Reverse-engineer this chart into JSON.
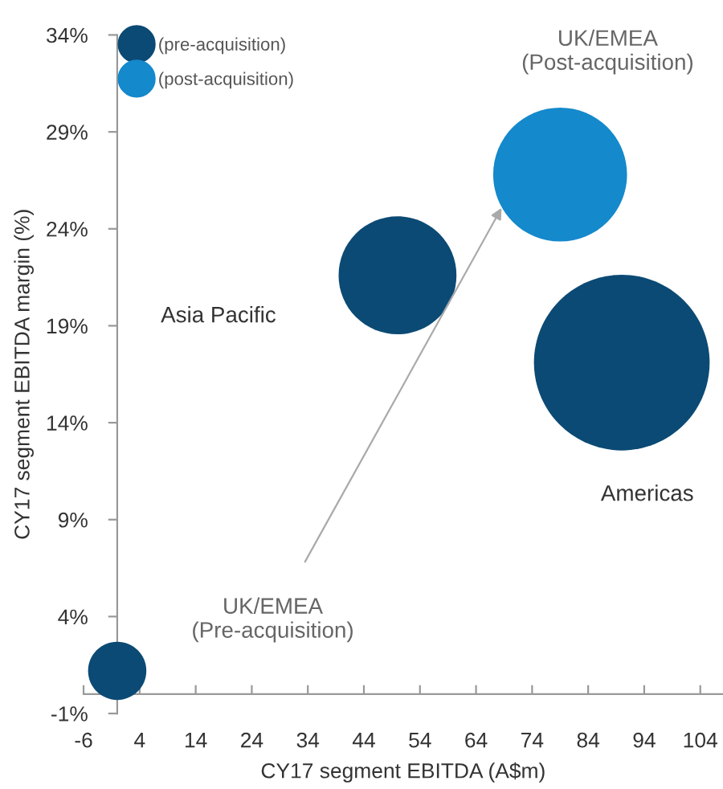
{
  "chart_data": {
    "type": "bubble",
    "xlabel": "CY17 segment EBITDA (A$m)",
    "ylabel": "CY17 segment EBITDA margin (%)",
    "xlim": [
      -6,
      108
    ],
    "xticks": [
      -6,
      4,
      14,
      24,
      34,
      44,
      54,
      64,
      74,
      84,
      94,
      104
    ],
    "ylim": [
      -1,
      34
    ],
    "yticks": [
      {
        "value": -1,
        "label": "-1%"
      },
      {
        "value": 4,
        "label": "4%"
      },
      {
        "value": 9,
        "label": "9%"
      },
      {
        "value": 14,
        "label": "14%"
      },
      {
        "value": 19,
        "label": "19%"
      },
      {
        "value": 24,
        "label": "24%"
      },
      {
        "value": 29,
        "label": "29%"
      },
      {
        "value": 34,
        "label": "34%"
      }
    ],
    "series": [
      {
        "name": "(pre-acquisition)",
        "color": "#0b4a74",
        "x": [
          0,
          50,
          90
        ],
        "values": [
          1.2,
          21.6,
          17.1
        ],
        "sizes": [
          0.11,
          0.45,
          1
        ]
      },
      {
        "name": "(post-acquisition)",
        "color": "#1489cc",
        "x": [
          79
        ],
        "values": [
          26.8
        ],
        "sizes": [
          0.58
        ]
      }
    ],
    "annotations": [
      "Asia Pacific",
      "UK/EMEA\n(Post-acquisition)",
      "Americas",
      "UK/EMEA\n(Pre-acquisition)"
    ],
    "legend": "top left",
    "grid": false
  }
}
